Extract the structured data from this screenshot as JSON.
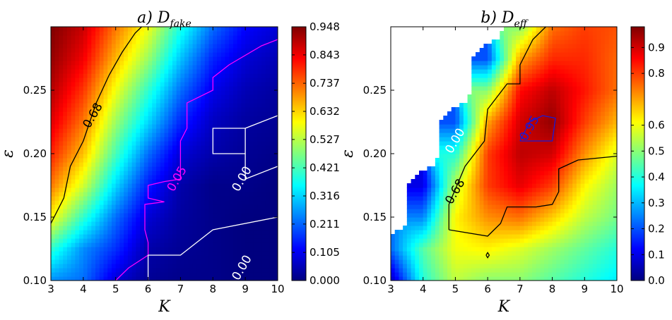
{
  "colors": {
    "jet": [
      "#00007f",
      "#0000ff",
      "#007fff",
      "#00ffff",
      "#7fff7f",
      "#ffff00",
      "#ff7f00",
      "#ff0000",
      "#7f0000"
    ],
    "contour_black": "#000000",
    "contour_white": "#ffffff",
    "contour_magenta": "#ff00ff",
    "contour_blue": "#1a1ad8"
  },
  "chart_data": [
    {
      "type": "heatmap",
      "title_prefix": "a)",
      "title_symbol": "D",
      "title_sub": "fake",
      "xlabel": "K",
      "ylabel": "ε",
      "xlim": [
        3,
        10
      ],
      "ylim": [
        0.1,
        0.3
      ],
      "x_ticks": [
        "3",
        "4",
        "5",
        "6",
        "7",
        "8",
        "9",
        "10"
      ],
      "y_ticks": [
        "0.10",
        "0.15",
        "0.20",
        "0.25"
      ],
      "colorbar_ticks": [
        "0.948",
        "0.843",
        "0.737",
        "0.632",
        "0.527",
        "0.421",
        "0.316",
        "0.211",
        "0.105",
        "0.000"
      ],
      "colorbar_range": [
        0.0,
        0.948
      ],
      "grid_x": [
        3,
        4,
        5,
        6,
        7,
        8,
        9,
        10
      ],
      "grid_y": [
        0.1,
        0.125,
        0.15,
        0.175,
        0.2,
        0.225,
        0.25,
        0.275,
        0.3
      ],
      "z": [
        [
          0.25,
          0.22,
          0.08,
          0.02,
          0.01,
          0.01,
          0.0,
          0.0
        ],
        [
          0.4,
          0.25,
          0.16,
          0.04,
          0.02,
          0.01,
          0.0,
          0.0
        ],
        [
          0.6,
          0.4,
          0.22,
          0.08,
          0.03,
          0.01,
          0.0,
          0.0
        ],
        [
          0.72,
          0.55,
          0.32,
          0.14,
          0.04,
          0.01,
          0.01,
          0.0
        ],
        [
          0.8,
          0.65,
          0.42,
          0.22,
          0.08,
          0.04,
          0.02,
          0.01
        ],
        [
          0.86,
          0.72,
          0.5,
          0.32,
          0.15,
          0.06,
          0.03,
          0.02
        ],
        [
          0.9,
          0.78,
          0.58,
          0.4,
          0.22,
          0.1,
          0.05,
          0.03
        ],
        [
          0.93,
          0.84,
          0.66,
          0.5,
          0.3,
          0.15,
          0.08,
          0.05
        ],
        [
          0.948,
          0.88,
          0.72,
          0.58,
          0.38,
          0.22,
          0.12,
          0.08
        ]
      ],
      "contours": [
        {
          "level": "0.68",
          "color": "black",
          "points": [
            [
              3.0,
              0.145
            ],
            [
              3.4,
              0.165
            ],
            [
              3.6,
              0.19
            ],
            [
              4.0,
              0.21
            ],
            [
              4.4,
              0.24
            ],
            [
              4.8,
              0.262
            ],
            [
              5.2,
              0.28
            ],
            [
              5.6,
              0.295
            ],
            [
              5.8,
              0.3
            ]
          ]
        },
        {
          "level": "0.05",
          "color": "magenta",
          "points": [
            [
              5.0,
              0.1
            ],
            [
              5.4,
              0.11
            ],
            [
              6.0,
              0.12
            ],
            [
              6.0,
              0.13
            ],
            [
              5.9,
              0.14
            ],
            [
              5.9,
              0.16
            ],
            [
              6.5,
              0.162
            ],
            [
              6.0,
              0.165
            ],
            [
              6.0,
              0.175
            ],
            [
              6.5,
              0.178
            ],
            [
              7.0,
              0.18
            ],
            [
              7.0,
              0.21
            ],
            [
              7.2,
              0.22
            ],
            [
              7.2,
              0.24
            ],
            [
              8.0,
              0.25
            ],
            [
              8.0,
              0.26
            ],
            [
              8.5,
              0.27
            ],
            [
              9.5,
              0.285
            ],
            [
              10.0,
              0.29
            ]
          ]
        },
        {
          "level": "0.00",
          "color": "white",
          "points": [
            [
              6.0,
              0.1
            ],
            [
              6.0,
              0.12
            ],
            [
              7.0,
              0.12
            ],
            [
              8.0,
              0.14
            ],
            [
              10.0,
              0.15
            ]
          ]
        },
        {
          "level": "0.00",
          "color": "white",
          "points": [
            [
              10.0,
              0.23
            ],
            [
              9.0,
              0.22
            ],
            [
              9.0,
              0.2
            ],
            [
              8.0,
              0.2
            ],
            [
              8.0,
              0.22
            ],
            [
              9.0,
              0.22
            ],
            [
              9.0,
              0.18
            ],
            [
              10.0,
              0.19
            ]
          ]
        }
      ],
      "contour_labels": [
        {
          "text": "0.68",
          "x": 4.3,
          "y": 0.23,
          "color": "black"
        },
        {
          "text": "0.05",
          "x": 6.9,
          "y": 0.18,
          "color": "magenta"
        },
        {
          "text": "0.00",
          "x": 8.9,
          "y": 0.18,
          "color": "white"
        },
        {
          "text": "0.00",
          "x": 8.9,
          "y": 0.11,
          "color": "white"
        }
      ]
    },
    {
      "type": "heatmap",
      "title_prefix": "b)",
      "title_symbol": "D",
      "title_sub": "eff",
      "xlabel": "K",
      "ylabel": "ε",
      "xlim": [
        3,
        10
      ],
      "ylim": [
        0.1,
        0.3
      ],
      "x_ticks": [
        "3",
        "4",
        "5",
        "6",
        "7",
        "8",
        "9",
        "10"
      ],
      "y_ticks": [
        "0.10",
        "0.15",
        "0.20",
        "0.25"
      ],
      "colorbar_ticks": [
        "0.9",
        "0.8",
        "0.6",
        "0.5",
        "0.4",
        "0.3",
        "0.2",
        "0.1",
        "0.0"
      ],
      "colorbar_range": [
        0.0,
        0.98
      ],
      "grid_x": [
        3,
        4,
        5,
        6,
        7,
        8,
        9,
        10
      ],
      "grid_y": [
        0.1,
        0.125,
        0.15,
        0.175,
        0.2,
        0.225,
        0.25,
        0.275,
        0.3
      ],
      "z": [
        [
          0.05,
          0.4,
          0.55,
          0.5,
          0.5,
          0.45,
          0.4,
          0.35
        ],
        [
          0.22,
          0.45,
          0.6,
          0.62,
          0.58,
          0.52,
          0.46,
          0.4
        ],
        [
          null,
          0.25,
          0.62,
          0.72,
          0.75,
          0.66,
          0.55,
          0.48
        ],
        [
          null,
          0.1,
          0.55,
          0.8,
          0.88,
          0.8,
          0.62,
          0.52
        ],
        [
          null,
          null,
          0.4,
          0.8,
          0.92,
          0.9,
          0.72,
          0.58
        ],
        [
          null,
          null,
          0.2,
          0.7,
          0.9,
          0.96,
          0.8,
          0.68
        ],
        [
          null,
          null,
          null,
          0.5,
          0.85,
          0.92,
          0.84,
          0.75
        ],
        [
          null,
          null,
          null,
          0.2,
          0.7,
          0.82,
          0.82,
          0.76
        ],
        [
          null,
          null,
          null,
          null,
          0.5,
          0.75,
          0.8,
          0.78
        ]
      ],
      "contours": [
        {
          "level": "0.68",
          "color": "black",
          "points": [
            [
              4.8,
              0.14
            ],
            [
              4.8,
              0.16
            ],
            [
              5.3,
              0.19
            ],
            [
              5.9,
              0.21
            ],
            [
              6.0,
              0.235
            ],
            [
              6.6,
              0.255
            ],
            [
              7.0,
              0.255
            ],
            [
              7.0,
              0.27
            ],
            [
              7.4,
              0.29
            ],
            [
              7.8,
              0.3
            ]
          ]
        },
        {
          "level": "0.68",
          "color": "black",
          "points": [
            [
              4.8,
              0.14
            ],
            [
              6.0,
              0.135
            ],
            [
              6.4,
              0.145
            ],
            [
              6.6,
              0.158
            ],
            [
              7.5,
              0.158
            ],
            [
              8.0,
              0.16
            ],
            [
              8.2,
              0.17
            ],
            [
              8.2,
              0.188
            ],
            [
              8.8,
              0.195
            ],
            [
              10.0,
              0.198
            ]
          ]
        },
        {
          "level": "0.95",
          "color": "blue",
          "points": [
            [
              7.0,
              0.21
            ],
            [
              7.3,
              0.225
            ],
            [
              7.7,
              0.23
            ],
            [
              8.1,
              0.228
            ],
            [
              8.0,
              0.21
            ],
            [
              7.0,
              0.21
            ]
          ]
        },
        {
          "level": "0.68",
          "color": "black",
          "points": [
            [
              5.95,
              0.12
            ],
            [
              6.0,
              0.122
            ],
            [
              6.05,
              0.12
            ],
            [
              6.0,
              0.118
            ],
            [
              5.95,
              0.12
            ]
          ]
        }
      ],
      "contour_labels": [
        {
          "text": "0.68",
          "x": 5.0,
          "y": 0.17,
          "color": "black"
        },
        {
          "text": "0.00",
          "x": 5.0,
          "y": 0.21,
          "color": "white"
        },
        {
          "text": "0.95",
          "x": 7.3,
          "y": 0.22,
          "color": "blue"
        }
      ]
    }
  ]
}
